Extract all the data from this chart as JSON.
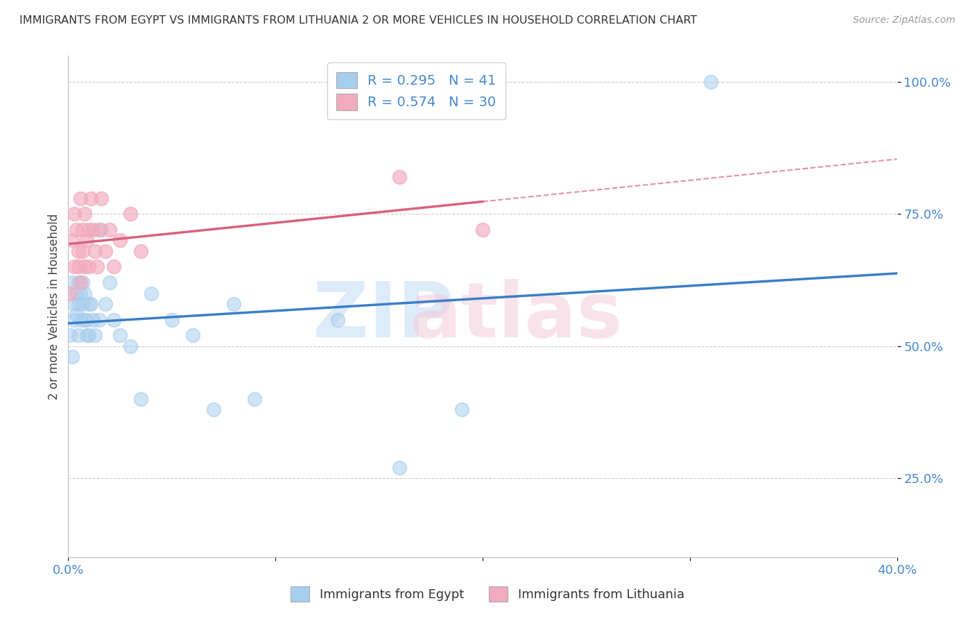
{
  "title": "IMMIGRANTS FROM EGYPT VS IMMIGRANTS FROM LITHUANIA 2 OR MORE VEHICLES IN HOUSEHOLD CORRELATION CHART",
  "source": "Source: ZipAtlas.com",
  "ylabel": "2 or more Vehicles in Household",
  "xlim": [
    0.0,
    0.4
  ],
  "ylim": [
    0.1,
    1.05
  ],
  "x_ticks": [
    0.0,
    0.1,
    0.2,
    0.3,
    0.4
  ],
  "x_tick_labels": [
    "0.0%",
    "",
    "",
    "",
    "40.0%"
  ],
  "y_ticks": [
    0.25,
    0.5,
    0.75,
    1.0
  ],
  "y_tick_labels": [
    "25.0%",
    "50.0%",
    "75.0%",
    "100.0%"
  ],
  "egypt_color": "#A8CEED",
  "lithuania_color": "#F2AABE",
  "trend_egypt_color": "#3A7EC8",
  "trend_lithuania_color": "#D96080",
  "R_egypt": 0.295,
  "N_egypt": 41,
  "R_lithuania": 0.574,
  "N_lithuania": 30,
  "egypt_x": [
    0.001,
    0.002,
    0.002,
    0.003,
    0.003,
    0.004,
    0.004,
    0.005,
    0.005,
    0.005,
    0.006,
    0.006,
    0.007,
    0.007,
    0.008,
    0.008,
    0.009,
    0.009,
    0.01,
    0.01,
    0.011,
    0.012,
    0.013,
    0.015,
    0.016,
    0.018,
    0.02,
    0.022,
    0.025,
    0.03,
    0.035,
    0.04,
    0.05,
    0.06,
    0.07,
    0.08,
    0.09,
    0.13,
    0.16,
    0.19,
    0.31
  ],
  "egypt_y": [
    0.52,
    0.48,
    0.62,
    0.55,
    0.58,
    0.6,
    0.56,
    0.62,
    0.58,
    0.52,
    0.55,
    0.6,
    0.58,
    0.62,
    0.55,
    0.6,
    0.55,
    0.52,
    0.58,
    0.52,
    0.58,
    0.55,
    0.52,
    0.55,
    0.72,
    0.58,
    0.62,
    0.55,
    0.52,
    0.5,
    0.4,
    0.6,
    0.55,
    0.52,
    0.38,
    0.58,
    0.4,
    0.55,
    0.27,
    0.38,
    1.0
  ],
  "lithuania_x": [
    0.001,
    0.002,
    0.003,
    0.003,
    0.004,
    0.005,
    0.005,
    0.006,
    0.006,
    0.007,
    0.007,
    0.008,
    0.008,
    0.009,
    0.01,
    0.01,
    0.011,
    0.012,
    0.013,
    0.014,
    0.015,
    0.016,
    0.018,
    0.02,
    0.022,
    0.025,
    0.03,
    0.035,
    0.16,
    0.2
  ],
  "lithuania_y": [
    0.6,
    0.7,
    0.65,
    0.75,
    0.72,
    0.68,
    0.65,
    0.78,
    0.62,
    0.72,
    0.68,
    0.65,
    0.75,
    0.7,
    0.65,
    0.72,
    0.78,
    0.72,
    0.68,
    0.65,
    0.72,
    0.78,
    0.68,
    0.72,
    0.65,
    0.7,
    0.75,
    0.68,
    0.82,
    0.72
  ]
}
